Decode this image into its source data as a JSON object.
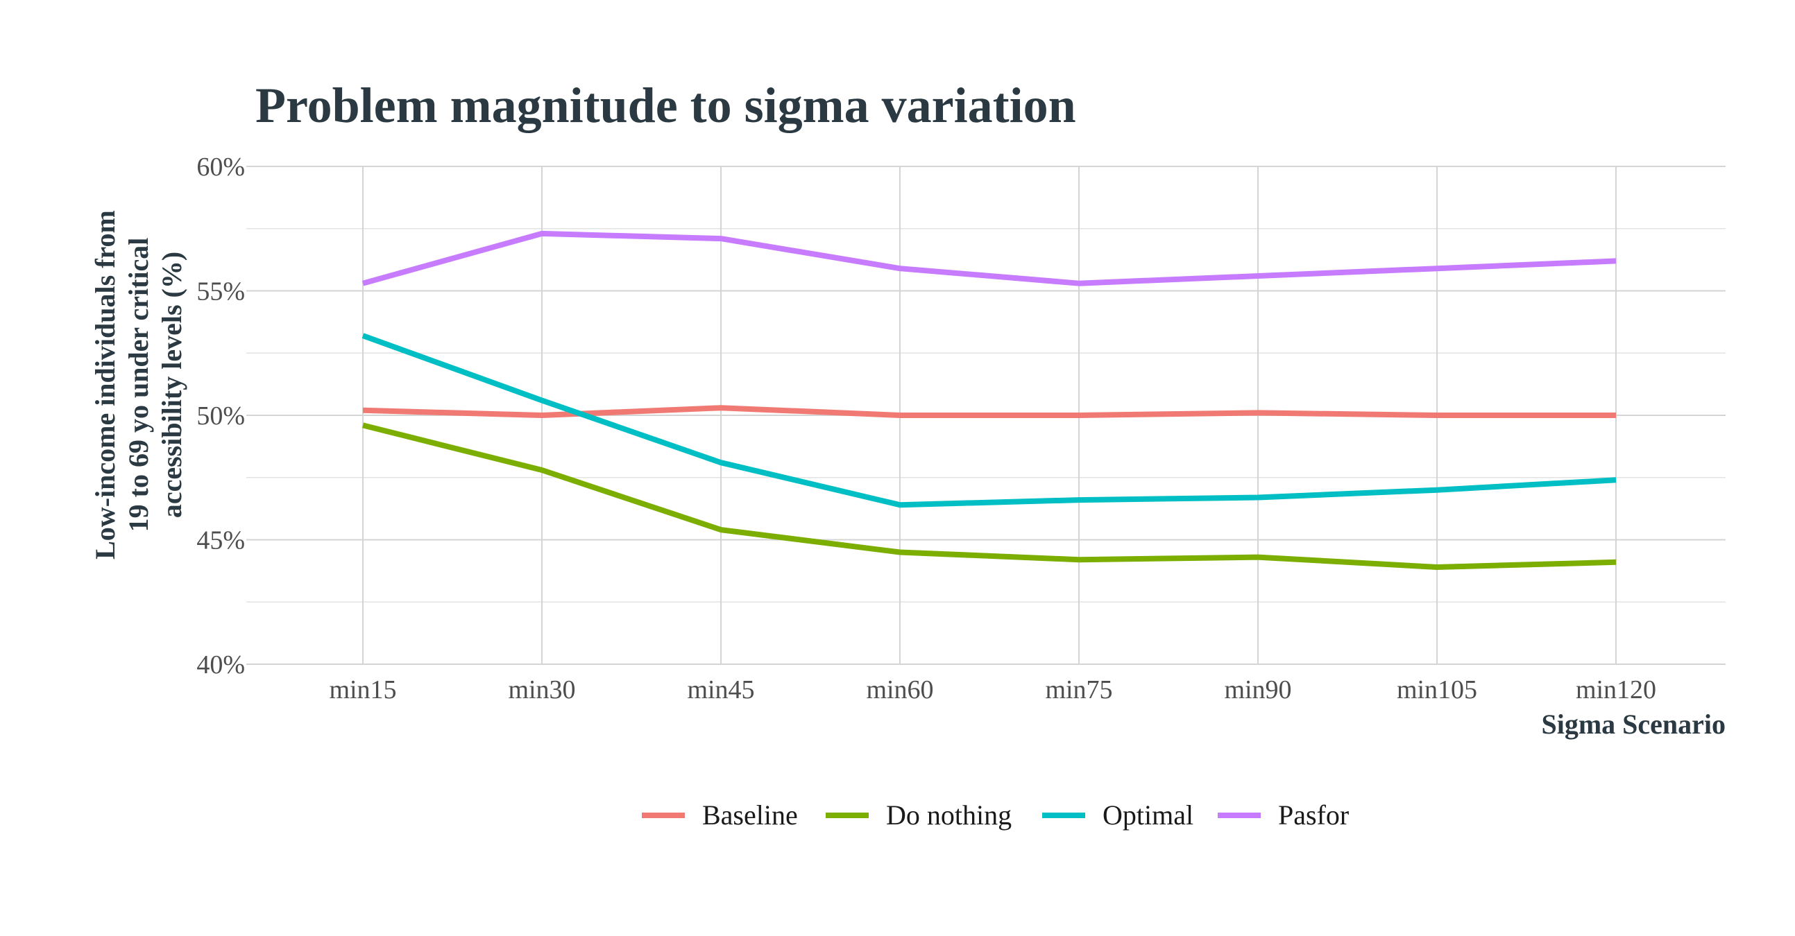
{
  "chart_data": {
    "type": "line",
    "title": "Problem magnitude to sigma variation",
    "xlabel": "Sigma Scenario",
    "ylabel_lines": [
      "Low-income individuals from",
      "19 to 69 yo under critical",
      "accessibility levels (%)"
    ],
    "categories": [
      "min15",
      "min30",
      "min45",
      "min60",
      "min75",
      "min90",
      "min105",
      "min120"
    ],
    "ylim": [
      40,
      60
    ],
    "y_ticks": [
      40,
      45,
      50,
      55,
      60
    ],
    "y_tick_labels": [
      "40%",
      "45%",
      "50%",
      "55%",
      "60%"
    ],
    "grid": true,
    "legend_position": "bottom",
    "series": [
      {
        "name": "Baseline",
        "color": "#f07a73",
        "values": [
          50.2,
          50.0,
          50.3,
          50.0,
          50.0,
          50.1,
          50.0,
          50.0
        ]
      },
      {
        "name": "Do nothing",
        "color": "#7cae00",
        "values": [
          49.6,
          47.8,
          45.4,
          44.5,
          44.2,
          44.3,
          43.9,
          44.1
        ]
      },
      {
        "name": "Optimal",
        "color": "#00bfc4",
        "values": [
          53.2,
          50.6,
          48.1,
          46.4,
          46.6,
          46.7,
          47.0,
          47.4
        ]
      },
      {
        "name": "Pasfor",
        "color": "#c77cff",
        "values": [
          55.3,
          57.3,
          57.1,
          55.9,
          55.3,
          55.6,
          55.9,
          56.2
        ]
      }
    ]
  }
}
